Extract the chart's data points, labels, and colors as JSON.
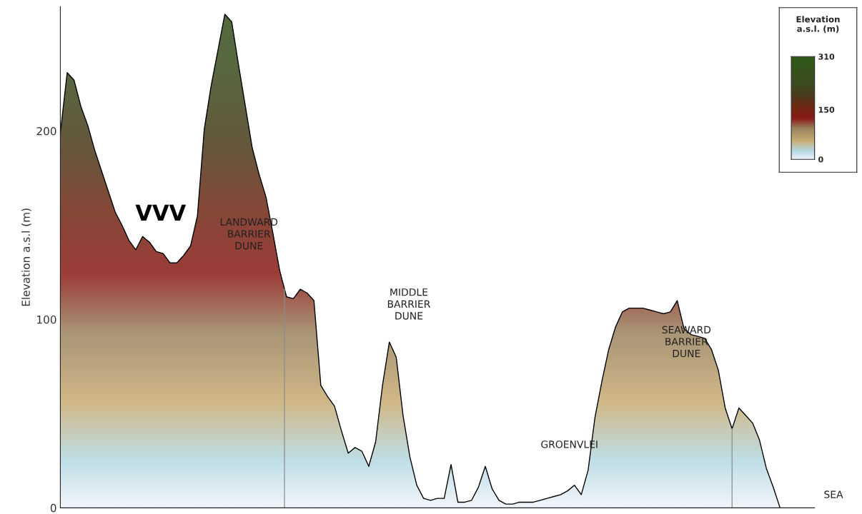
{
  "chart_data": {
    "type": "area",
    "ylabel": "Elevation a.s.l (m)",
    "clabel": "Elevation\na.s.l. (m)",
    "clim": [
      0,
      310
    ],
    "cticks": [
      0,
      150,
      310
    ],
    "categories": [
      null,
      null,
      null,
      null,
      null,
      null,
      null,
      null,
      null,
      null,
      null,
      null,
      null,
      null,
      null,
      null,
      null,
      null,
      null,
      null,
      null,
      null,
      null,
      null,
      null,
      null,
      null,
      null,
      null,
      null,
      null,
      null,
      null,
      null,
      null,
      null,
      null,
      null,
      null,
      null,
      null,
      null,
      null,
      null,
      null,
      null,
      null,
      null,
      null,
      null,
      null,
      null,
      null,
      null,
      null,
      null,
      null,
      null,
      null,
      null,
      null,
      null,
      null,
      null,
      null,
      null,
      null,
      null,
      null,
      null,
      null,
      null,
      null,
      null,
      null,
      null,
      null,
      null,
      null,
      null,
      null,
      null,
      null,
      null,
      null,
      null,
      null,
      null,
      null,
      null,
      null,
      null,
      null,
      null,
      null,
      null,
      null,
      null,
      null,
      null,
      null,
      null,
      null,
      null,
      null,
      null
    ],
    "values": [
      199,
      231,
      227,
      213,
      203,
      190,
      179,
      168,
      157,
      150,
      142,
      137,
      144,
      141,
      136,
      135,
      130,
      130,
      134,
      139,
      155,
      201,
      224,
      243,
      262,
      258,
      235,
      213,
      191,
      177,
      165,
      146,
      126,
      112,
      111,
      116,
      114,
      110,
      65,
      59,
      54,
      41,
      29,
      32,
      30,
      22,
      35,
      65,
      88,
      80,
      49,
      27,
      12,
      5,
      4,
      5,
      5,
      23,
      3,
      3,
      4,
      11,
      22,
      10,
      4,
      2,
      2,
      3,
      3,
      3,
      4,
      5,
      6,
      7,
      9,
      12,
      7,
      20,
      48,
      67,
      84,
      96,
      104,
      106,
      106,
      106,
      105,
      104,
      103,
      104,
      110,
      95,
      92,
      91,
      90,
      84,
      73,
      53,
      42,
      53,
      49,
      45,
      36,
      21,
      11,
      0
    ],
    "color": "#000000",
    "ylim": [
      0,
      266
    ],
    "yticks": [
      0,
      100,
      200
    ],
    "tick_labels": "y",
    "grid": false,
    "legend": false,
    "annotations": [
      "VVV",
      "LANDWARD\nBARRIER\nDUNE",
      "MIDDLE\nBARRIER\nDUNE",
      "GROENVLEI",
      "SEAWARD\nBARRIER\nDUNE",
      "SEA"
    ]
  }
}
